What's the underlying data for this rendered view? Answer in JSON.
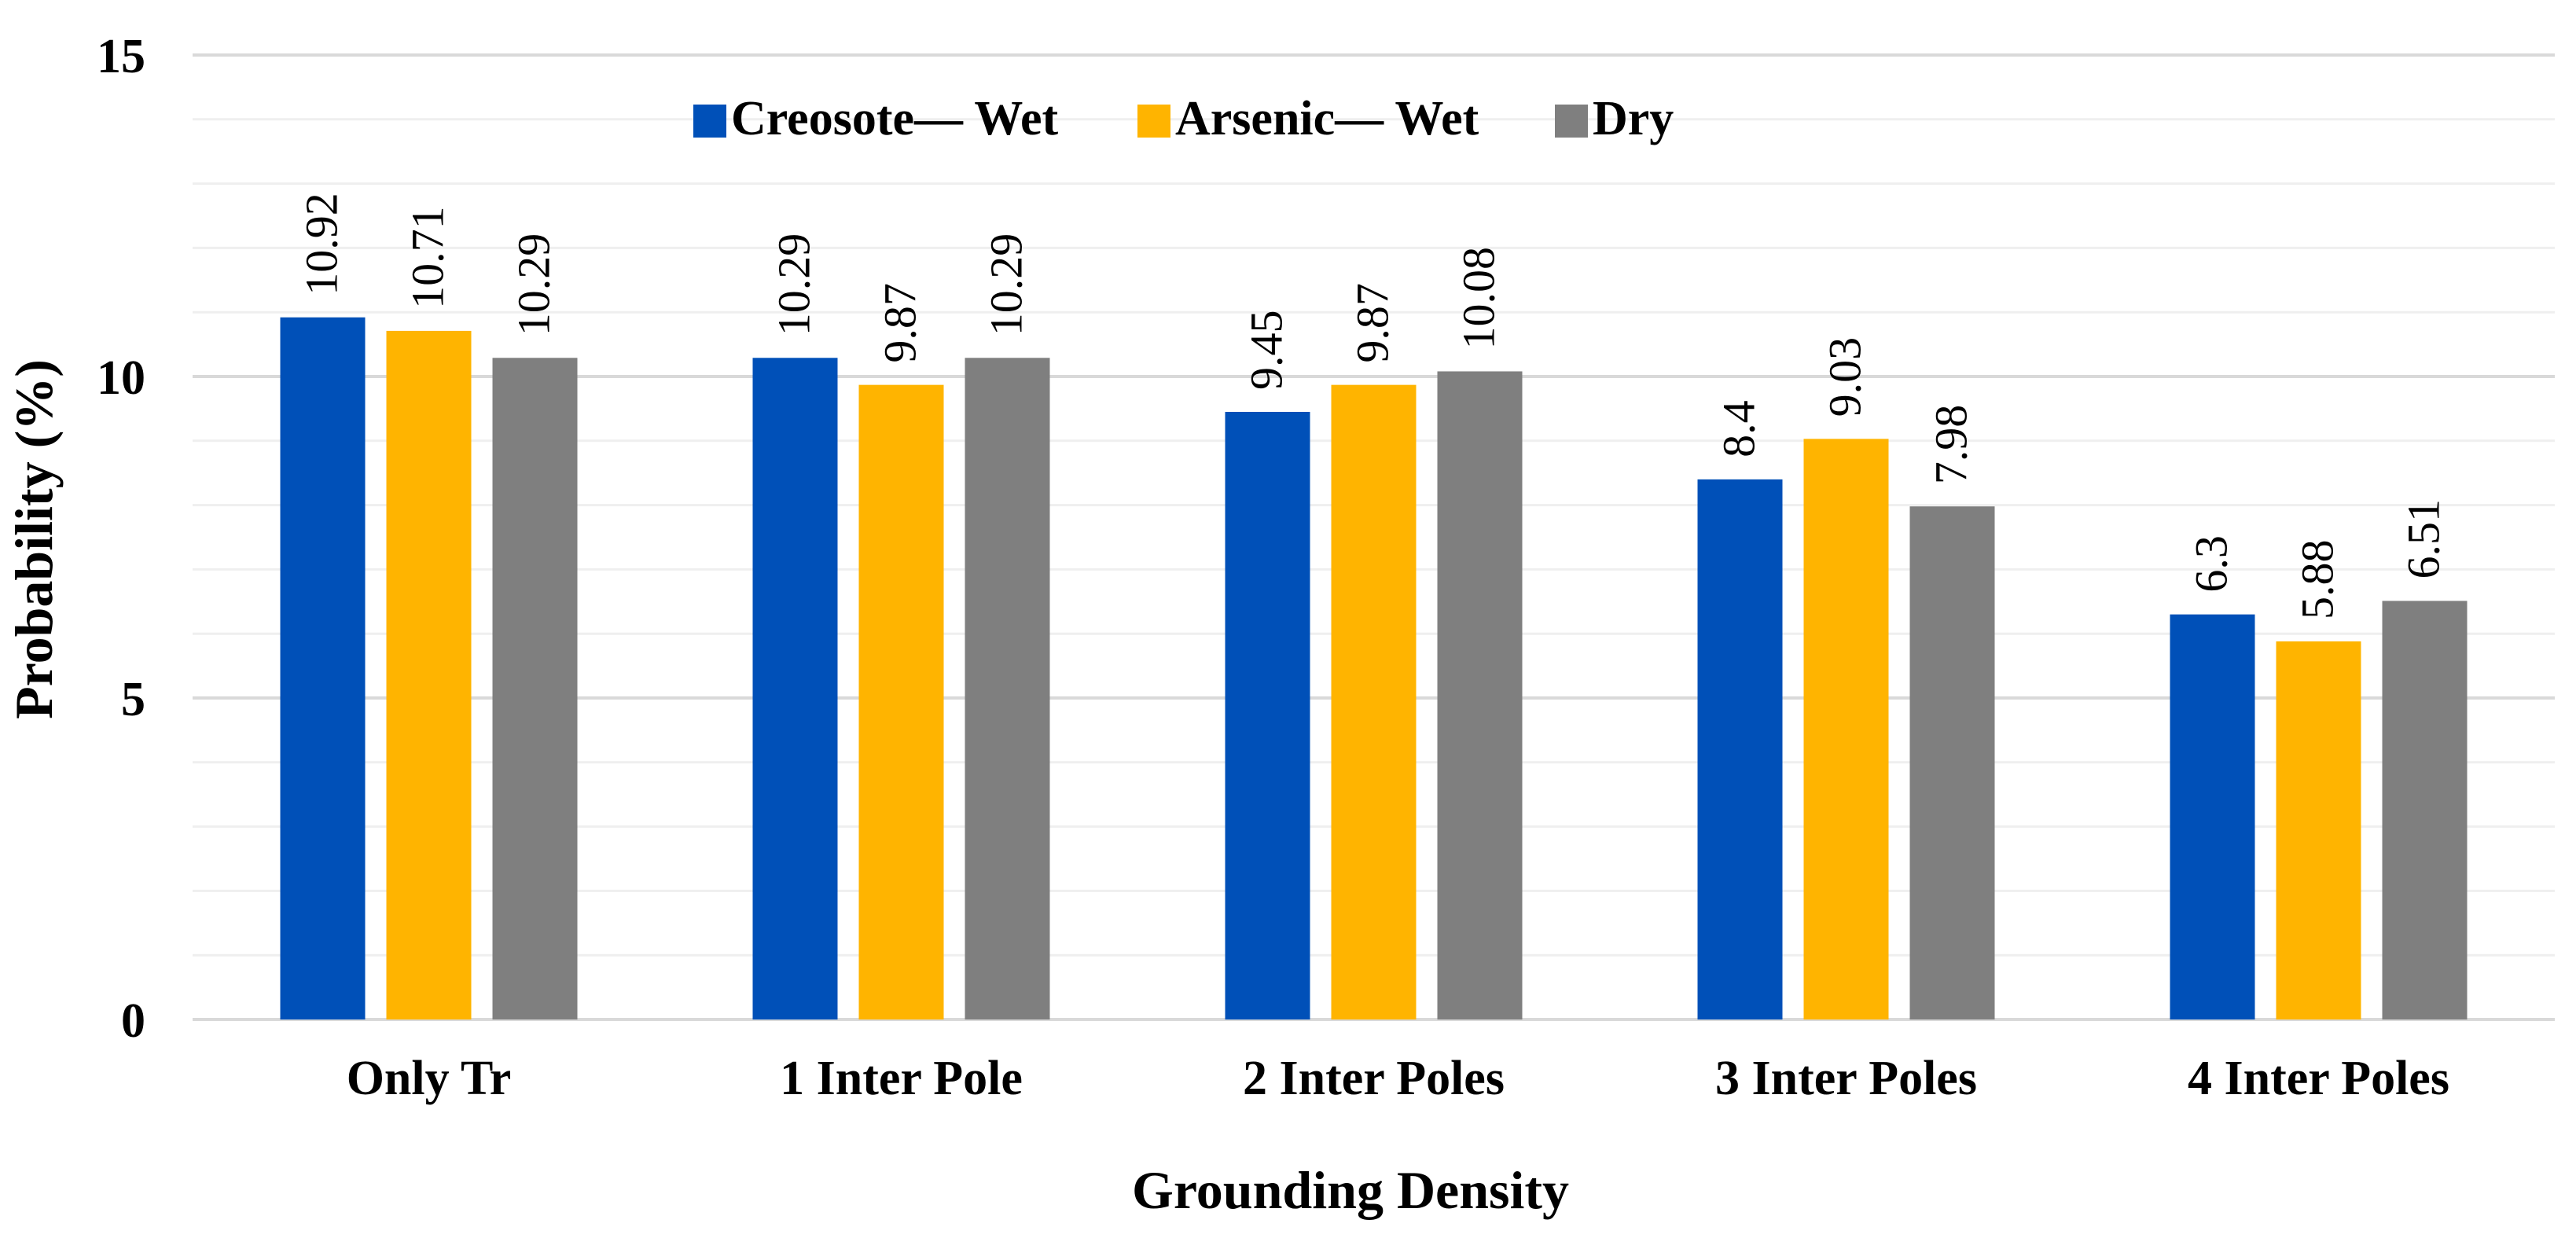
{
  "chart_data": {
    "type": "bar",
    "title": "",
    "xlabel": "Grounding Density",
    "ylabel": "Probability (%)",
    "ylim": [
      0,
      15
    ],
    "yticks": [
      0,
      5,
      10,
      15
    ],
    "grid": true,
    "legend_position": "top-center",
    "categories": [
      "Only Tr",
      "1 Inter Pole",
      "2 Inter Poles",
      "3 Inter Poles",
      "4 Inter Poles"
    ],
    "series": [
      {
        "name": "Creosote— Wet",
        "color": "#0050b8",
        "values": [
          10.92,
          10.29,
          9.45,
          8.4,
          6.3
        ],
        "labels": [
          "10.92",
          "10.29",
          "9.45",
          "8.4",
          "6.3"
        ]
      },
      {
        "name": "Arsenic— Wet",
        "color": "#ffb400",
        "values": [
          10.71,
          9.87,
          9.87,
          9.03,
          5.88
        ],
        "labels": [
          "10.71",
          "9.87",
          "9.87",
          "9.03",
          "5.88"
        ]
      },
      {
        "name": "Dry",
        "color": "#7f7f7f",
        "values": [
          10.29,
          10.29,
          10.08,
          7.98,
          6.51
        ],
        "labels": [
          "10.29",
          "10.29",
          "10.08",
          "7.98",
          "6.51"
        ]
      }
    ]
  }
}
